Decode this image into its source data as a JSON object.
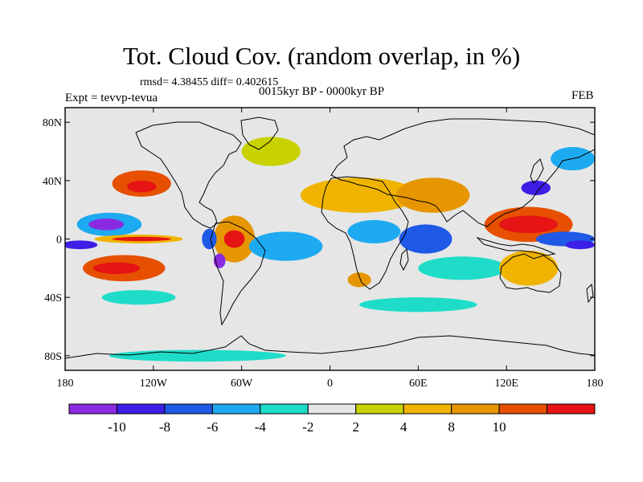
{
  "title": "Tot. Cloud Cov. (random overlap, in %)",
  "stats": "rmsd= 4.38455 diff= 0.402615",
  "period": "0015kyr BP - 0000kyr BP",
  "experiment": "Expt = tevvp-tevua",
  "month": "FEB",
  "map": {
    "projection": "cylindrical-equidistant",
    "lon_range": [
      -180,
      180
    ],
    "lat_range": [
      -90,
      90
    ],
    "x_ticks": [
      {
        "value": -180,
        "label": "180"
      },
      {
        "value": -120,
        "label": "120W"
      },
      {
        "value": -60,
        "label": "60W"
      },
      {
        "value": 0,
        "label": "0"
      },
      {
        "value": 60,
        "label": "60E"
      },
      {
        "value": 120,
        "label": "120E"
      },
      {
        "value": 180,
        "label": "180"
      }
    ],
    "y_ticks": [
      {
        "value": 80,
        "label": "80N"
      },
      {
        "value": 40,
        "label": "40N"
      },
      {
        "value": 0,
        "label": "0"
      },
      {
        "value": -40,
        "label": "40S"
      },
      {
        "value": -80,
        "label": "80S"
      }
    ],
    "background_color": "#e6e6e6"
  },
  "colorbar": {
    "colors": [
      "#8a2be2",
      "#3c1ee6",
      "#1e5ae6",
      "#1eaaf0",
      "#1edcc8",
      "#e6e6e6",
      "#c8d200",
      "#f0b400",
      "#e69600",
      "#e65000",
      "#e61414"
    ],
    "labels": [
      {
        "index": 1,
        "text": "-10"
      },
      {
        "index": 2,
        "text": "-8"
      },
      {
        "index": 3,
        "text": "-6"
      },
      {
        "index": 4,
        "text": "-4"
      },
      {
        "index": 5,
        "text": "-2"
      },
      {
        "index": 6,
        "text": "2"
      },
      {
        "index": 7,
        "text": "4"
      },
      {
        "index": 8,
        "text": "8"
      },
      {
        "index": 9,
        "text": "10"
      }
    ]
  },
  "anomaly_regions": [
    {
      "lon": -128,
      "lat": 38,
      "rlon": 20,
      "rlat": 9,
      "level": 9
    },
    {
      "lon": -128,
      "lat": 36,
      "rlon": 10,
      "rlat": 4,
      "level": 10
    },
    {
      "lon": -150,
      "lat": 10,
      "rlon": 22,
      "rlat": 8,
      "level": 3
    },
    {
      "lon": -152,
      "lat": 10,
      "rlon": 12,
      "rlat": 4,
      "level": 0
    },
    {
      "lon": -140,
      "lat": -20,
      "rlon": 28,
      "rlat": 9,
      "level": 9
    },
    {
      "lon": -145,
      "lat": -20,
      "rlon": 16,
      "rlat": 4,
      "level": 10
    },
    {
      "lon": -130,
      "lat": 0,
      "rlon": 30,
      "rlat": 3,
      "level": 7
    },
    {
      "lon": -128,
      "lat": 0,
      "rlon": 20,
      "rlat": 1.5,
      "level": 10
    },
    {
      "lon": -170,
      "lat": -4,
      "rlon": 12,
      "rlat": 3,
      "level": 1
    },
    {
      "lon": -65,
      "lat": 0,
      "rlon": 14,
      "rlat": 16,
      "level": 8
    },
    {
      "lon": -65,
      "lat": 0,
      "rlon": 7,
      "rlat": 6,
      "level": 10
    },
    {
      "lon": -82,
      "lat": 0,
      "rlon": 5,
      "rlat": 7,
      "level": 2
    },
    {
      "lon": -75,
      "lat": -15,
      "rlon": 4,
      "rlat": 5,
      "level": 0
    },
    {
      "lon": -30,
      "lat": -5,
      "rlon": 25,
      "rlat": 10,
      "level": 3
    },
    {
      "lon": 30,
      "lat": 5,
      "rlon": 18,
      "rlat": 8,
      "level": 3
    },
    {
      "lon": 65,
      "lat": 0,
      "rlon": 18,
      "rlat": 10,
      "level": 2
    },
    {
      "lon": 90,
      "lat": -20,
      "rlon": 30,
      "rlat": 8,
      "level": 4
    },
    {
      "lon": 20,
      "lat": -28,
      "rlon": 8,
      "rlat": 5,
      "level": 8
    },
    {
      "lon": 20,
      "lat": 30,
      "rlon": 40,
      "rlat": 12,
      "level": 7
    },
    {
      "lon": 70,
      "lat": 30,
      "rlon": 25,
      "rlat": 12,
      "level": 8
    },
    {
      "lon": 135,
      "lat": 10,
      "rlon": 30,
      "rlat": 12,
      "level": 9
    },
    {
      "lon": 135,
      "lat": 10,
      "rlon": 20,
      "rlat": 6,
      "level": 10
    },
    {
      "lon": 135,
      "lat": -20,
      "rlon": 20,
      "rlat": 12,
      "level": 7
    },
    {
      "lon": 160,
      "lat": 0,
      "rlon": 20,
      "rlat": 5,
      "level": 2
    },
    {
      "lon": 170,
      "lat": -4,
      "rlon": 10,
      "rlat": 3,
      "level": 1
    },
    {
      "lon": 140,
      "lat": 35,
      "rlon": 10,
      "rlat": 5,
      "level": 1
    },
    {
      "lon": 165,
      "lat": 55,
      "rlon": 15,
      "rlat": 8,
      "level": 3
    },
    {
      "lon": -40,
      "lat": 60,
      "rlon": 20,
      "rlat": 10,
      "level": 6
    },
    {
      "lon": -130,
      "lat": -40,
      "rlon": 25,
      "rlat": 5,
      "level": 4
    },
    {
      "lon": -90,
      "lat": -80,
      "rlon": 60,
      "rlat": 4,
      "level": 4
    },
    {
      "lon": 60,
      "lat": -45,
      "rlon": 40,
      "rlat": 5,
      "level": 4
    }
  ]
}
